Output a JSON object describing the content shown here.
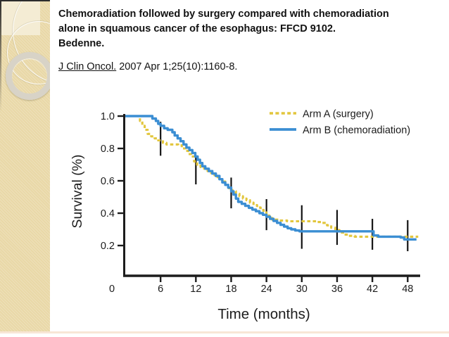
{
  "slide": {
    "title_lines": [
      "Chemoradiation followed by surgery compared with chemoradiation",
      "alone in squamous cancer of the esophagus: FFCD 9102.",
      "Bedenne."
    ],
    "citation": {
      "journal": "J Clin Oncol.",
      "rest": " 2007 Apr 1;25(10):1160-8."
    }
  },
  "colors": {
    "sidebar_bg": "#e9d8a7",
    "sidebar_box": "#f4ecd4",
    "ring_gray": "#d8d3c7",
    "arm_a_yellow": "#e2c63d",
    "arm_b_blue": "#3b8ed3",
    "axis_black": "#1c1c1c",
    "bottom_strip": "#f8e6d6"
  },
  "chart_data": {
    "type": "line",
    "subtype": "kaplan-meier-step",
    "title": "",
    "xlabel": "Time (months)",
    "ylabel": "Survival (%)",
    "xlim": [
      0,
      50
    ],
    "ylim": [
      0,
      1.0
    ],
    "xticks": [
      0,
      6,
      12,
      18,
      24,
      30,
      36,
      42,
      48
    ],
    "yticks": [
      0.2,
      0.4,
      0.6,
      0.8,
      1.0
    ],
    "grid": false,
    "legend_position": "top-right",
    "series": [
      {
        "name": "Arm A (surgery)",
        "style": "dashed",
        "color": "#e2c63d",
        "points": [
          [
            0,
            1.0
          ],
          [
            2.2,
            1.0
          ],
          [
            2.5,
            0.97
          ],
          [
            2.9,
            0.94
          ],
          [
            3.3,
            0.915
          ],
          [
            3.8,
            0.89
          ],
          [
            4.4,
            0.875
          ],
          [
            5,
            0.862
          ],
          [
            5.6,
            0.85
          ],
          [
            6.4,
            0.835
          ],
          [
            7,
            0.825
          ],
          [
            9,
            0.82
          ],
          [
            9.6,
            0.8
          ],
          [
            10.2,
            0.785
          ],
          [
            10.7,
            0.765
          ],
          [
            11.2,
            0.75
          ],
          [
            11.7,
            0.72
          ],
          [
            12.2,
            0.7
          ],
          [
            12.8,
            0.685
          ],
          [
            13.4,
            0.675
          ],
          [
            14,
            0.66
          ],
          [
            14.6,
            0.64
          ],
          [
            15.2,
            0.625
          ],
          [
            15.8,
            0.61
          ],
          [
            16.4,
            0.595
          ],
          [
            17,
            0.575
          ],
          [
            17.6,
            0.555
          ],
          [
            18.2,
            0.535
          ],
          [
            18.8,
            0.52
          ],
          [
            19.4,
            0.505
          ],
          [
            20,
            0.49
          ],
          [
            20.6,
            0.48
          ],
          [
            21.2,
            0.465
          ],
          [
            21.8,
            0.45
          ],
          [
            22.4,
            0.435
          ],
          [
            23,
            0.42
          ],
          [
            23.5,
            0.405
          ],
          [
            24,
            0.385
          ],
          [
            24.5,
            0.37
          ],
          [
            25,
            0.36
          ],
          [
            26,
            0.355
          ],
          [
            27.5,
            0.35
          ],
          [
            31.5,
            0.35
          ],
          [
            32.5,
            0.345
          ],
          [
            33.5,
            0.34
          ],
          [
            34.3,
            0.325
          ],
          [
            35,
            0.31
          ],
          [
            35.7,
            0.295
          ],
          [
            36.4,
            0.28
          ],
          [
            37.2,
            0.268
          ],
          [
            38,
            0.26
          ],
          [
            39,
            0.255
          ],
          [
            47.5,
            0.255
          ],
          [
            49.8,
            0.255
          ]
        ]
      },
      {
        "name": "Arm B (chemoradiation)",
        "style": "solid",
        "color": "#3b8ed3",
        "points": [
          [
            0,
            1.0
          ],
          [
            4.2,
            1.0
          ],
          [
            4.6,
            0.985
          ],
          [
            5.2,
            0.97
          ],
          [
            5.6,
            0.952
          ],
          [
            6,
            0.94
          ],
          [
            6.6,
            0.925
          ],
          [
            7.2,
            0.915
          ],
          [
            8,
            0.9
          ],
          [
            8.4,
            0.88
          ],
          [
            8.9,
            0.862
          ],
          [
            9.4,
            0.845
          ],
          [
            9.9,
            0.825
          ],
          [
            10.4,
            0.805
          ],
          [
            10.9,
            0.79
          ],
          [
            11.4,
            0.772
          ],
          [
            11.9,
            0.75
          ],
          [
            12.3,
            0.73
          ],
          [
            12.7,
            0.71
          ],
          [
            13.1,
            0.69
          ],
          [
            13.6,
            0.675
          ],
          [
            14.2,
            0.66
          ],
          [
            14.8,
            0.645
          ],
          [
            15.4,
            0.63
          ],
          [
            16,
            0.61
          ],
          [
            16.5,
            0.59
          ],
          [
            17,
            0.575
          ],
          [
            17.5,
            0.558
          ],
          [
            18,
            0.535
          ],
          [
            18.4,
            0.515
          ],
          [
            18.8,
            0.49
          ],
          [
            19.2,
            0.47
          ],
          [
            19.8,
            0.458
          ],
          [
            20.4,
            0.445
          ],
          [
            21,
            0.433
          ],
          [
            21.6,
            0.422
          ],
          [
            22.2,
            0.412
          ],
          [
            22.8,
            0.4
          ],
          [
            23.4,
            0.39
          ],
          [
            24,
            0.378
          ],
          [
            24.6,
            0.365
          ],
          [
            25.2,
            0.352
          ],
          [
            25.8,
            0.34
          ],
          [
            26.4,
            0.328
          ],
          [
            27,
            0.317
          ],
          [
            27.6,
            0.307
          ],
          [
            28.2,
            0.3
          ],
          [
            28.9,
            0.293
          ],
          [
            29.6,
            0.288
          ],
          [
            41.6,
            0.288
          ],
          [
            42.2,
            0.262
          ],
          [
            43,
            0.255
          ],
          [
            46.8,
            0.25
          ],
          [
            47.4,
            0.238
          ],
          [
            49.5,
            0.238
          ]
        ]
      }
    ],
    "censor_bars": [
      {
        "month": 6,
        "lo": 0.755,
        "hi": 0.965
      },
      {
        "month": 12,
        "lo": 0.578,
        "hi": 0.75
      },
      {
        "month": 18,
        "lo": 0.43,
        "hi": 0.62
      },
      {
        "month": 24,
        "lo": 0.295,
        "hi": 0.487
      },
      {
        "month": 30,
        "lo": 0.18,
        "hi": 0.449
      },
      {
        "month": 36,
        "lo": 0.204,
        "hi": 0.42
      },
      {
        "month": 42,
        "lo": 0.174,
        "hi": 0.365
      },
      {
        "month": 48,
        "lo": 0.165,
        "hi": 0.357
      }
    ]
  }
}
